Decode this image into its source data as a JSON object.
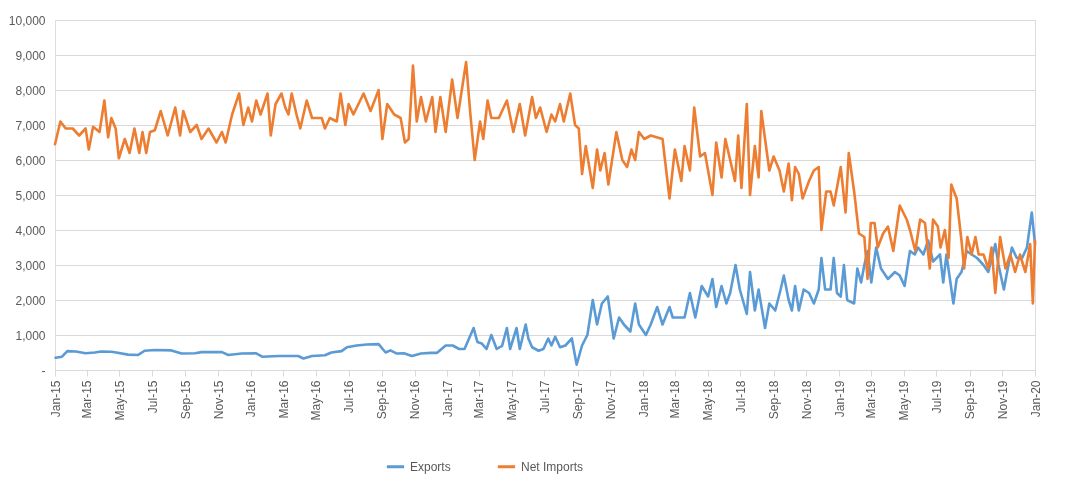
{
  "chart_data": {
    "type": "line",
    "xlim": [
      "2015-01-01",
      "2020-01-01"
    ],
    "xticks": [
      {
        "value": "2015-01",
        "label": "Jan-15"
      },
      {
        "value": "2015-03",
        "label": "Mar-15"
      },
      {
        "value": "2015-05",
        "label": "May-15"
      },
      {
        "value": "2015-07",
        "label": "Jul-15"
      },
      {
        "value": "2015-09",
        "label": "Sep-15"
      },
      {
        "value": "2015-11",
        "label": "Nov-15"
      },
      {
        "value": "2016-01",
        "label": "Jan-16"
      },
      {
        "value": "2016-03",
        "label": "Mar-16"
      },
      {
        "value": "2016-05",
        "label": "May-16"
      },
      {
        "value": "2016-07",
        "label": "Jul-16"
      },
      {
        "value": "2016-09",
        "label": "Sep-16"
      },
      {
        "value": "2016-11",
        "label": "Nov-16"
      },
      {
        "value": "2017-01",
        "label": "Jan-17"
      },
      {
        "value": "2017-03",
        "label": "Mar-17"
      },
      {
        "value": "2017-05",
        "label": "May-17"
      },
      {
        "value": "2017-07",
        "label": "Jul-17"
      },
      {
        "value": "2017-09",
        "label": "Sep-17"
      },
      {
        "value": "2017-11",
        "label": "Nov-17"
      },
      {
        "value": "2018-01",
        "label": "Jan-18"
      },
      {
        "value": "2018-03",
        "label": "Mar-18"
      },
      {
        "value": "2018-05",
        "label": "May-18"
      },
      {
        "value": "2018-07",
        "label": "Jul-18"
      },
      {
        "value": "2018-09",
        "label": "Sep-18"
      },
      {
        "value": "2018-11",
        "label": "Nov-18"
      },
      {
        "value": "2019-01",
        "label": "Jan-19"
      },
      {
        "value": "2019-03",
        "label": "Mar-19"
      },
      {
        "value": "2019-05",
        "label": "May-19"
      },
      {
        "value": "2019-07",
        "label": "Jul-19"
      },
      {
        "value": "2019-09",
        "label": "Sep-19"
      },
      {
        "value": "2019-11",
        "label": "Nov-19"
      },
      {
        "value": "2020-01",
        "label": "Jan-20"
      }
    ],
    "ylim": [
      0,
      10000
    ],
    "yticks": [
      {
        "value": 0,
        "label": "-"
      },
      {
        "value": 1000,
        "label": "1,000"
      },
      {
        "value": 2000,
        "label": "2,000"
      },
      {
        "value": 3000,
        "label": "3,000"
      },
      {
        "value": 4000,
        "label": "4,000"
      },
      {
        "value": 5000,
        "label": "5,000"
      },
      {
        "value": 6000,
        "label": "6,000"
      },
      {
        "value": 7000,
        "label": "7,000"
      },
      {
        "value": 8000,
        "label": "8,000"
      },
      {
        "value": 9000,
        "label": "9,000"
      },
      {
        "value": 10000,
        "label": "10,000"
      }
    ],
    "grid": "y",
    "legend": "bottom",
    "marker": "none",
    "line_style": "solid",
    "series": [
      {
        "name": "Exports",
        "color": "#5b9bd5",
        "x": [
          "2015-01-02",
          "2015-01-14",
          "2015-01-24",
          "2015-02-09",
          "2015-02-27",
          "2015-03-16",
          "2015-03-28",
          "2015-04-16",
          "2015-04-25",
          "2015-05-17",
          "2015-06-05",
          "2015-06-17",
          "2015-07-06",
          "2015-08-06",
          "2015-08-25",
          "2015-09-19",
          "2015-10-01",
          "2015-11-08",
          "2015-11-20",
          "2015-12-15",
          "2016-01-10",
          "2016-01-22",
          "2016-02-22",
          "2016-03-29",
          "2016-04-08",
          "2016-04-24",
          "2016-05-18",
          "2016-05-30",
          "2016-06-18",
          "2016-06-28",
          "2016-07-16",
          "2016-08-04",
          "2016-08-26",
          "2016-09-08",
          "2016-09-17",
          "2016-09-29",
          "2016-10-12",
          "2016-10-27",
          "2016-11-13",
          "2016-12-01",
          "2016-12-13",
          "2016-12-29",
          "2017-01-11",
          "2017-01-23",
          "2017-02-02",
          "2017-02-19",
          "2017-02-26",
          "2017-03-06",
          "2017-03-15",
          "2017-03-24",
          "2017-04-03",
          "2017-04-13",
          "2017-04-22",
          "2017-04-28",
          "2017-05-10",
          "2017-05-16",
          "2017-05-27",
          "2017-06-01",
          "2017-06-08",
          "2017-06-20",
          "2017-06-29",
          "2017-07-08",
          "2017-07-14",
          "2017-07-21",
          "2017-07-30",
          "2017-08-09",
          "2017-08-21",
          "2017-08-30",
          "2017-09-09",
          "2017-09-19",
          "2017-09-29",
          "2017-10-07",
          "2017-10-16",
          "2017-10-27",
          "2017-11-07",
          "2017-11-17",
          "2017-11-26",
          "2017-12-08",
          "2017-12-17",
          "2017-12-24",
          "2018-01-06",
          "2018-01-15",
          "2018-01-27",
          "2018-02-06",
          "2018-02-19",
          "2018-02-25",
          "2018-03-19",
          "2018-03-29",
          "2018-04-08",
          "2018-04-20",
          "2018-05-02",
          "2018-05-10",
          "2018-05-17",
          "2018-05-27",
          "2018-06-05",
          "2018-06-12",
          "2018-06-22",
          "2018-06-30",
          "2018-07-13",
          "2018-07-19",
          "2018-07-28",
          "2018-08-04",
          "2018-08-16",
          "2018-08-24",
          "2018-09-04",
          "2018-09-14",
          "2018-09-20",
          "2018-09-29",
          "2018-10-05",
          "2018-10-11",
          "2018-10-18",
          "2018-10-27",
          "2018-11-06",
          "2018-11-15",
          "2018-11-24",
          "2018-11-29",
          "2018-12-06",
          "2018-12-16",
          "2018-12-22",
          "2018-12-28",
          "2019-01-04",
          "2019-01-10",
          "2019-01-16",
          "2019-01-29",
          "2019-02-04",
          "2019-02-11",
          "2019-02-17",
          "2019-02-23",
          "2019-03-02",
          "2019-03-11",
          "2019-03-20",
          "2019-04-02",
          "2019-04-15",
          "2019-04-24",
          "2019-05-03",
          "2019-05-13",
          "2019-05-22",
          "2019-05-28",
          "2019-06-07",
          "2019-06-16",
          "2019-06-25",
          "2019-07-08",
          "2019-07-14",
          "2019-07-20",
          "2019-08-02",
          "2019-08-08",
          "2019-08-17",
          "2019-08-27",
          "2019-09-05",
          "2019-09-15",
          "2019-09-27",
          "2019-10-06",
          "2019-10-19",
          "2019-10-25",
          "2019-11-04",
          "2019-11-10",
          "2019-11-19",
          "2019-11-28",
          "2019-12-08",
          "2019-12-17",
          "2019-12-26",
          "2020-01-01"
        ],
        "values": [
          350,
          380,
          540,
          530,
          480,
          500,
          530,
          520,
          500,
          440,
          430,
          550,
          570,
          560,
          470,
          480,
          510,
          510,
          430,
          470,
          480,
          380,
          400,
          400,
          330,
          400,
          420,
          500,
          540,
          650,
          700,
          730,
          740,
          500,
          560,
          470,
          480,
          400,
          470,
          490,
          490,
          700,
          700,
          600,
          600,
          1200,
          800,
          760,
          600,
          1000,
          600,
          690,
          1200,
          600,
          1200,
          600,
          1300,
          900,
          650,
          550,
          600,
          900,
          700,
          950,
          650,
          700,
          900,
          150,
          700,
          1000,
          2000,
          1300,
          1900,
          2100,
          900,
          1500,
          1300,
          1100,
          1900,
          1300,
          1000,
          1300,
          1800,
          1300,
          1800,
          1500,
          1500,
          2200,
          1500,
          2400,
          2100,
          2600,
          1800,
          2400,
          1900,
          2200,
          3000,
          2300,
          1600,
          2800,
          1700,
          2300,
          1200,
          1900,
          1700,
          2300,
          2700,
          2000,
          1700,
          2400,
          1700,
          2300,
          2200,
          1900,
          2300,
          3200,
          2300,
          2300,
          3200,
          2200,
          2100,
          3000,
          2000,
          1900,
          2900,
          2500,
          3000,
          3400,
          2500,
          3500,
          2900,
          2600,
          2800,
          2700,
          2400,
          3400,
          3300,
          3500,
          3300,
          3700,
          3100,
          3300,
          2500,
          3300,
          1900,
          2600,
          2800,
          3400,
          3300,
          3200,
          3000,
          2800,
          3600,
          3000,
          2300,
          2800,
          3500,
          3200,
          3200,
          3500,
          4500,
          3600
        ]
      },
      {
        "name": "Net Imports",
        "color": "#ed7d31",
        "x": [
          "2015-01-01",
          "2015-01-11",
          "2015-01-21",
          "2015-02-03",
          "2015-02-15",
          "2015-02-27",
          "2015-03-05",
          "2015-03-13",
          "2015-03-25",
          "2015-04-03",
          "2015-04-10",
          "2015-04-16",
          "2015-04-24",
          "2015-04-30",
          "2015-05-11",
          "2015-05-20",
          "2015-05-29",
          "2015-06-07",
          "2015-06-13",
          "2015-06-20",
          "2015-06-27",
          "2015-07-06",
          "2015-07-17",
          "2015-07-30",
          "2015-08-13",
          "2015-08-22",
          "2015-08-28",
          "2015-09-10",
          "2015-09-22",
          "2015-10-01",
          "2015-10-14",
          "2015-10-29",
          "2015-11-08",
          "2015-11-15",
          "2015-11-27",
          "2015-12-10",
          "2015-12-18",
          "2015-12-27",
          "2016-01-03",
          "2016-01-11",
          "2016-01-19",
          "2016-02-01",
          "2016-02-07",
          "2016-02-16",
          "2016-02-27",
          "2016-03-05",
          "2016-03-11",
          "2016-03-17",
          "2016-03-26",
          "2016-04-02",
          "2016-04-14",
          "2016-04-24",
          "2016-05-12",
          "2016-05-18",
          "2016-05-27",
          "2016-06-09",
          "2016-06-16",
          "2016-06-25",
          "2016-07-01",
          "2016-07-10",
          "2016-07-29",
          "2016-08-11",
          "2016-08-26",
          "2016-09-02",
          "2016-09-11",
          "2016-09-24",
          "2016-10-06",
          "2016-10-14",
          "2016-10-21",
          "2016-10-29",
          "2016-11-05",
          "2016-11-13",
          "2016-11-22",
          "2016-12-04",
          "2016-12-10",
          "2016-12-19",
          "2016-12-29",
          "2017-01-10",
          "2017-01-20",
          "2017-02-05",
          "2017-02-13",
          "2017-02-21",
          "2017-03-03",
          "2017-03-09",
          "2017-03-17",
          "2017-03-24",
          "2017-04-07",
          "2017-04-22",
          "2017-05-04",
          "2017-05-16",
          "2017-05-26",
          "2017-06-01",
          "2017-06-08",
          "2017-06-15",
          "2017-06-23",
          "2017-07-05",
          "2017-07-14",
          "2017-07-21",
          "2017-07-30",
          "2017-08-06",
          "2017-08-18",
          "2017-08-27",
          "2017-09-03",
          "2017-09-09",
          "2017-09-16",
          "2017-09-29",
          "2017-10-07",
          "2017-10-13",
          "2017-10-21",
          "2017-10-28",
          "2017-11-12",
          "2017-11-23",
          "2017-12-02",
          "2017-12-10",
          "2017-12-17",
          "2017-12-24",
          "2018-01-03",
          "2018-01-15",
          "2018-02-06",
          "2018-02-19",
          "2018-03-01",
          "2018-03-13",
          "2018-03-19",
          "2018-03-29",
          "2018-04-06",
          "2018-04-17",
          "2018-04-26",
          "2018-05-10",
          "2018-05-17",
          "2018-05-27",
          "2018-06-03",
          "2018-06-12",
          "2018-06-21",
          "2018-06-27",
          "2018-07-03",
          "2018-07-13",
          "2018-07-19",
          "2018-07-28",
          "2018-08-04",
          "2018-08-09",
          "2018-08-16",
          "2018-08-24",
          "2018-09-01",
          "2018-09-12",
          "2018-09-20",
          "2018-09-29",
          "2018-10-05",
          "2018-10-11",
          "2018-10-18",
          "2018-10-25",
          "2018-11-06",
          "2018-11-15",
          "2018-11-24",
          "2018-11-29",
          "2018-12-08",
          "2018-12-16",
          "2018-12-22",
          "2019-01-04",
          "2019-01-13",
          "2019-01-19",
          "2019-01-29",
          "2019-02-07",
          "2019-02-17",
          "2019-02-23",
          "2019-03-01",
          "2019-03-08",
          "2019-03-14",
          "2019-03-24",
          "2019-04-02",
          "2019-04-12",
          "2019-04-24",
          "2019-05-07",
          "2019-05-13",
          "2019-05-23",
          "2019-06-01",
          "2019-06-10",
          "2019-06-19",
          "2019-06-25",
          "2019-07-04",
          "2019-07-09",
          "2019-07-17",
          "2019-07-24",
          "2019-07-29",
          "2019-08-08",
          "2019-08-17",
          "2019-08-22",
          "2019-08-28",
          "2019-09-05",
          "2019-09-12",
          "2019-09-18",
          "2019-09-27",
          "2019-10-06",
          "2019-10-12",
          "2019-10-19",
          "2019-10-28",
          "2019-11-07",
          "2019-11-16",
          "2019-11-25",
          "2019-12-04",
          "2019-12-14",
          "2019-12-23",
          "2019-12-28",
          "2020-01-01"
        ],
        "values": [
          6450,
          7100,
          6900,
          6900,
          6700,
          6900,
          6300,
          6950,
          6800,
          7700,
          6650,
          7200,
          6900,
          6050,
          6600,
          6200,
          6900,
          6200,
          6800,
          6200,
          6800,
          6850,
          7400,
          6700,
          7500,
          6700,
          7400,
          6800,
          7000,
          6600,
          6900,
          6500,
          6800,
          6500,
          7300,
          7900,
          7000,
          7500,
          7100,
          7700,
          7300,
          7900,
          6700,
          7600,
          7900,
          7500,
          7300,
          7900,
          7300,
          6900,
          7700,
          7200,
          7200,
          6900,
          7200,
          7100,
          7900,
          7000,
          7600,
          7300,
          7900,
          7400,
          8000,
          6600,
          7600,
          7300,
          7200,
          6500,
          6600,
          8700,
          7100,
          7800,
          7100,
          7800,
          6800,
          7800,
          6800,
          8300,
          7200,
          8800,
          7300,
          6000,
          7100,
          6600,
          7700,
          7200,
          7200,
          7700,
          6800,
          7600,
          6700,
          7200,
          7800,
          7200,
          7500,
          6800,
          7300,
          7100,
          7600,
          7100,
          7900,
          7000,
          6900,
          5600,
          6400,
          5200,
          6300,
          5700,
          6200,
          5300,
          6800,
          6000,
          5800,
          6300,
          6000,
          6800,
          6600,
          6700,
          6600,
          4900,
          6300,
          5400,
          6400,
          5700,
          7500,
          6100,
          6200,
          5000,
          6500,
          5500,
          6600,
          6000,
          5400,
          6700,
          5200,
          7600,
          5000,
          6400,
          5500,
          7400,
          6600,
          5700,
          6100,
          5700,
          5100,
          5900,
          4850,
          5800,
          5600,
          4900,
          5400,
          5700,
          5800,
          4000,
          5100,
          5100,
          4700,
          5800,
          4500,
          6200,
          5100,
          3900,
          3800,
          2600,
          4200,
          4200,
          3500,
          3900,
          4100,
          3400,
          4700,
          4300,
          4000,
          3400,
          4300,
          4200,
          2900,
          4300,
          4100,
          3500,
          4000,
          3200,
          5300,
          4900,
          3700,
          2900,
          3800,
          3300,
          3800,
          3300,
          3300,
          2900,
          3500,
          2200,
          3800,
          2900,
          3300,
          2800,
          3300,
          2800,
          3600,
          1900,
          3700
        ]
      }
    ]
  }
}
